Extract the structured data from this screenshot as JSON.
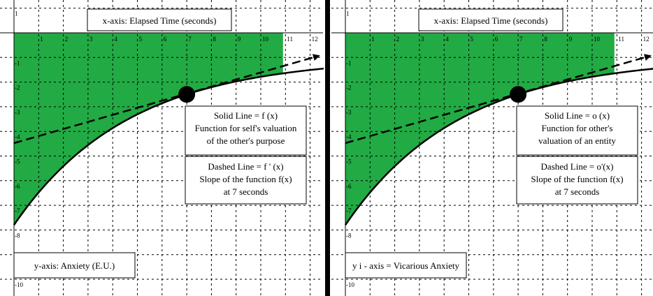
{
  "panels": [
    {
      "title": "x-axis: Elapsed Time (seconds)",
      "x_ticks": [
        "1",
        "2",
        "3",
        "4",
        "5",
        "6",
        "7",
        "8",
        "9",
        "10",
        "11",
        "12"
      ],
      "y_ticks": [
        "1",
        "-1",
        "-2",
        "-3",
        "-4",
        "-5",
        "-6",
        "-7",
        "-8",
        "-10"
      ],
      "solid_box": [
        "Solid Line = f (x)",
        "Function for self's valuation",
        "of the other's purpose"
      ],
      "dashed_box": [
        "Dashed Line = f ' (x)",
        "Slope of the function f(x)",
        "at  7  seconds"
      ],
      "y_axis_label": "y-axis: Anxiety (E.U.)"
    },
    {
      "title": "x-axis: Elapsed Time (seconds)",
      "x_ticks": [
        "1",
        "2",
        "3",
        "4",
        "5",
        "6",
        "7",
        "8",
        "9",
        "10",
        "11",
        "12"
      ],
      "y_ticks": [
        "1",
        "-1",
        "-2",
        "-3",
        "-4",
        "-5",
        "-6",
        "-7",
        "-8",
        "-10"
      ],
      "solid_box": [
        "Solid Line = o (x)",
        "Function for other's",
        "valuation of an entity"
      ],
      "dashed_box": [
        "Dashed Line =  o'(x)",
        "Slope of the function f(x)",
        "at  7  seconds"
      ],
      "y_axis_label": "y i - axis = Vicarious Anxiety"
    }
  ]
}
